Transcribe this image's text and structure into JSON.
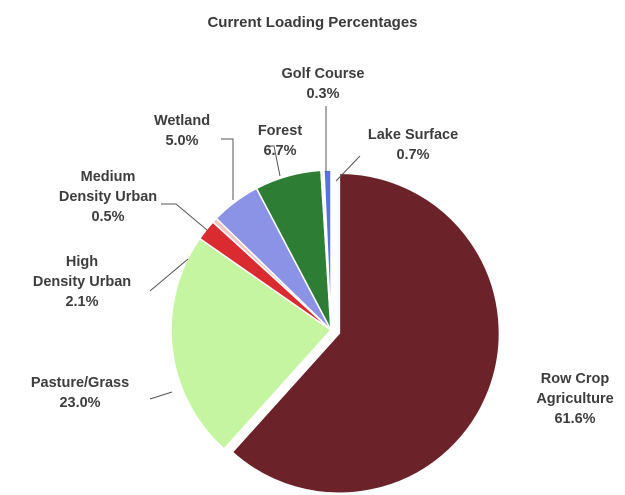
{
  "chart_data": {
    "type": "pie",
    "title": "Current Loading Percentages",
    "slices": [
      {
        "label": "Row Crop Agriculture",
        "label_lines": [
          "Row Crop",
          "Agriculture"
        ],
        "value_text": "61.6%",
        "value": 61.6,
        "color": "#6b2228",
        "exploded": true
      },
      {
        "label": "Pasture/Grass",
        "label_lines": [
          "Pasture/Grass"
        ],
        "value_text": "23.0%",
        "value": 23.0,
        "color": "#c5f5a0"
      },
      {
        "label": "High Density Urban",
        "label_lines": [
          "High",
          "Density Urban"
        ],
        "value_text": "2.1%",
        "value": 2.1,
        "color": "#d92b30"
      },
      {
        "label": "Medium Density Urban",
        "label_lines": [
          "Medium",
          "Density Urban"
        ],
        "value_text": "0.5%",
        "value": 0.5,
        "color": "#f2c4c4"
      },
      {
        "label": "Wetland",
        "label_lines": [
          "Wetland"
        ],
        "value_text": "5.0%",
        "value": 5.0,
        "color": "#8a93e6"
      },
      {
        "label": "Forest",
        "label_lines": [
          "Forest"
        ],
        "value_text": "6.7%",
        "value": 6.7,
        "color": "#2e7d34"
      },
      {
        "label": "Golf Course",
        "label_lines": [
          "Golf Course"
        ],
        "value_text": "0.3%",
        "value": 0.3,
        "color": "#f3f3f3"
      },
      {
        "label": "Lake Surface",
        "label_lines": [
          "Lake Surface"
        ],
        "value_text": "0.7%",
        "value": 0.7,
        "color": "#5a6fe0"
      }
    ]
  }
}
